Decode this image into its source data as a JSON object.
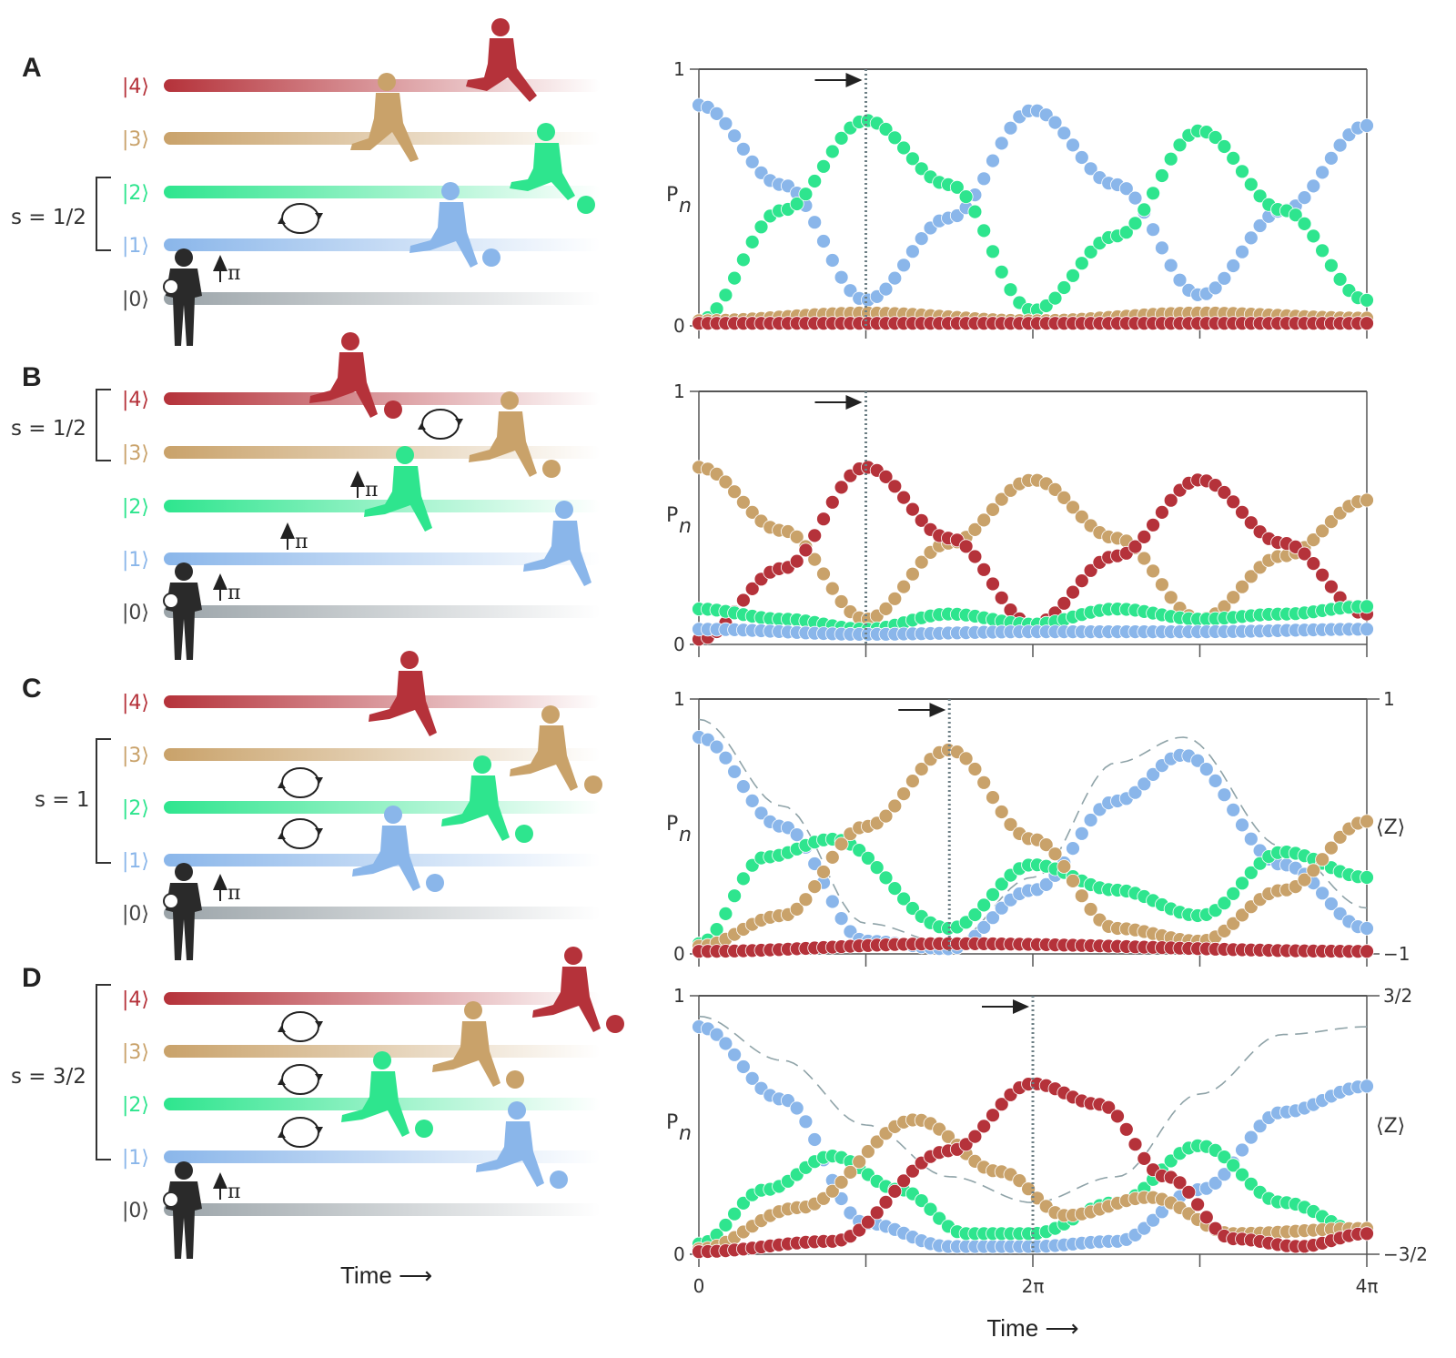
{
  "panel_A": {
    "letter": "A",
    "kets": [
      "|4⟩",
      "|3⟩",
      "|2⟩",
      "|1⟩",
      "|0⟩"
    ],
    "spin": "s = 1/2",
    "pulse": "π"
  },
  "panel_B": {
    "letter": "B",
    "kets": [
      "|4⟩",
      "|3⟩",
      "|2⟩",
      "|1⟩",
      "|0⟩"
    ],
    "spin": "s = 1/2",
    "pulse": "π"
  },
  "panel_C": {
    "letter": "C",
    "kets": [
      "|4⟩",
      "|3⟩",
      "|2⟩",
      "|1⟩",
      "|0⟩"
    ],
    "spin": "s = 1",
    "pulse": "π"
  },
  "panel_D": {
    "letter": "D",
    "kets": [
      "|4⟩",
      "|3⟩",
      "|2⟩",
      "|1⟩",
      "|0⟩"
    ],
    "spin": "s = 3/2",
    "pulse": "π"
  },
  "left_time_label": "Time ⟶",
  "colors": {
    "level_4": "#b5323a",
    "level_3": "#c9a26a",
    "level_2": "#2ee58e",
    "level_1": "#8ab6ea",
    "level_0": "#9aa3a8",
    "figure": "#2a2a2a",
    "z_line": "#8fa3a8"
  },
  "chart_data": [
    {
      "type": "scatter",
      "panel": "A",
      "ylabel": "P",
      "ylabel_sub": "n",
      "yticks": [
        "0",
        "1"
      ],
      "ylim": [
        0,
        1
      ],
      "xlim": [
        0,
        4
      ],
      "x_unit": "π",
      "marker": 1,
      "series": [
        {
          "color": "#8ab6ea",
          "points": [
            [
              0,
              0.86
            ],
            [
              0.5,
              0.55
            ],
            [
              1,
              0.1
            ],
            [
              1.5,
              0.42
            ],
            [
              2,
              0.84
            ],
            [
              2.5,
              0.55
            ],
            [
              3,
              0.12
            ],
            [
              3.5,
              0.45
            ],
            [
              4,
              0.78
            ]
          ]
        },
        {
          "color": "#2ee58e",
          "points": [
            [
              0,
              0.02
            ],
            [
              0.5,
              0.45
            ],
            [
              1,
              0.8
            ],
            [
              1.5,
              0.55
            ],
            [
              2,
              0.06
            ],
            [
              2.5,
              0.35
            ],
            [
              3,
              0.76
            ],
            [
              3.5,
              0.45
            ],
            [
              4,
              0.1
            ]
          ]
        },
        {
          "color": "#c9a26a",
          "points": [
            [
              0,
              0.02
            ],
            [
              1,
              0.05
            ],
            [
              2,
              0.02
            ],
            [
              3,
              0.05
            ],
            [
              4,
              0.03
            ]
          ]
        },
        {
          "color": "#b5323a",
          "points": [
            [
              0,
              0.01
            ],
            [
              2,
              0.01
            ],
            [
              4,
              0.01
            ]
          ]
        }
      ]
    },
    {
      "type": "scatter",
      "panel": "B",
      "ylabel": "P",
      "ylabel_sub": "n",
      "yticks": [
        "0",
        "1"
      ],
      "ylim": [
        0,
        1
      ],
      "xlim": [
        0,
        4
      ],
      "x_unit": "π",
      "marker": 1,
      "series": [
        {
          "color": "#c9a26a",
          "points": [
            [
              0,
              0.7
            ],
            [
              0.5,
              0.45
            ],
            [
              1,
              0.1
            ],
            [
              1.5,
              0.4
            ],
            [
              2,
              0.65
            ],
            [
              2.5,
              0.42
            ],
            [
              3,
              0.1
            ],
            [
              3.5,
              0.35
            ],
            [
              4,
              0.57
            ]
          ]
        },
        {
          "color": "#b5323a",
          "points": [
            [
              0,
              0.02
            ],
            [
              0.5,
              0.3
            ],
            [
              1,
              0.7
            ],
            [
              1.5,
              0.42
            ],
            [
              2,
              0.08
            ],
            [
              2.5,
              0.35
            ],
            [
              3,
              0.65
            ],
            [
              3.5,
              0.4
            ],
            [
              4,
              0.12
            ]
          ]
        },
        {
          "color": "#2ee58e",
          "points": [
            [
              0,
              0.14
            ],
            [
              0.5,
              0.1
            ],
            [
              1,
              0.06
            ],
            [
              1.5,
              0.12
            ],
            [
              2,
              0.08
            ],
            [
              2.5,
              0.14
            ],
            [
              3,
              0.1
            ],
            [
              3.5,
              0.12
            ],
            [
              4,
              0.15
            ]
          ]
        },
        {
          "color": "#8ab6ea",
          "points": [
            [
              0,
              0.06
            ],
            [
              1,
              0.04
            ],
            [
              2,
              0.05
            ],
            [
              3,
              0.05
            ],
            [
              4,
              0.06
            ]
          ]
        }
      ]
    },
    {
      "type": "scatter",
      "panel": "C",
      "ylabel": "P",
      "ylabel_sub": "n",
      "yticks": [
        "0",
        "1"
      ],
      "ylim": [
        0,
        1
      ],
      "xlim": [
        0,
        4
      ],
      "x_unit": "π",
      "marker": 1.5,
      "right_axis": {
        "label": "⟨Z⟩",
        "ticks": [
          "1",
          "−1"
        ]
      },
      "series": [
        {
          "color": "#8ab6ea",
          "points": [
            [
              0,
              0.85
            ],
            [
              0.5,
              0.5
            ],
            [
              1,
              0.05
            ],
            [
              1.5,
              0.02
            ],
            [
              2,
              0.25
            ],
            [
              2.5,
              0.6
            ],
            [
              2.9,
              0.78
            ],
            [
              3.5,
              0.35
            ],
            [
              4,
              0.1
            ]
          ]
        },
        {
          "color": "#2ee58e",
          "points": [
            [
              0,
              0.04
            ],
            [
              0.4,
              0.38
            ],
            [
              0.8,
              0.45
            ],
            [
              1.5,
              0.1
            ],
            [
              2,
              0.35
            ],
            [
              2.5,
              0.25
            ],
            [
              3,
              0.15
            ],
            [
              3.5,
              0.4
            ],
            [
              4,
              0.3
            ]
          ]
        },
        {
          "color": "#c9a26a",
          "points": [
            [
              0,
              0.03
            ],
            [
              0.5,
              0.15
            ],
            [
              1,
              0.5
            ],
            [
              1.5,
              0.8
            ],
            [
              2,
              0.45
            ],
            [
              2.5,
              0.1
            ],
            [
              3,
              0.05
            ],
            [
              3.5,
              0.25
            ],
            [
              4,
              0.52
            ]
          ]
        },
        {
          "color": "#b5323a",
          "points": [
            [
              0,
              0.01
            ],
            [
              1.5,
              0.04
            ],
            [
              4,
              0.01
            ]
          ]
        }
      ],
      "z_line": [
        [
          0,
          0.92
        ],
        [
          0.5,
          0.58
        ],
        [
          1,
          0.12
        ],
        [
          1.5,
          0.04
        ],
        [
          2,
          0.3
        ],
        [
          2.5,
          0.75
        ],
        [
          2.9,
          0.85
        ],
        [
          3.5,
          0.42
        ],
        [
          4,
          0.18
        ]
      ]
    },
    {
      "type": "scatter",
      "panel": "D",
      "ylabel": "P",
      "ylabel_sub": "n",
      "yticks": [
        "0",
        "1"
      ],
      "ylim": [
        0,
        1
      ],
      "xlim": [
        0,
        4
      ],
      "x_unit": "π",
      "xticks": [
        "0",
        "2π",
        "4π"
      ],
      "xlabel": "Time ⟶",
      "marker": 2,
      "right_axis": {
        "label": "⟨Z⟩",
        "ticks": [
          "3/2",
          "−3/2"
        ]
      },
      "series": [
        {
          "color": "#8ab6ea",
          "points": [
            [
              0,
              0.88
            ],
            [
              0.5,
              0.6
            ],
            [
              1,
              0.12
            ],
            [
              1.5,
              0.03
            ],
            [
              2,
              0.03
            ],
            [
              2.5,
              0.05
            ],
            [
              3,
              0.25
            ],
            [
              3.5,
              0.55
            ],
            [
              4,
              0.65
            ]
          ]
        },
        {
          "color": "#2ee58e",
          "points": [
            [
              0,
              0.04
            ],
            [
              0.4,
              0.25
            ],
            [
              0.8,
              0.38
            ],
            [
              1.2,
              0.25
            ],
            [
              1.6,
              0.08
            ],
            [
              2,
              0.08
            ],
            [
              2.5,
              0.2
            ],
            [
              3,
              0.42
            ],
            [
              3.5,
              0.2
            ],
            [
              4,
              0.08
            ]
          ]
        },
        {
          "color": "#c9a26a",
          "points": [
            [
              0,
              0.02
            ],
            [
              0.6,
              0.18
            ],
            [
              1.3,
              0.52
            ],
            [
              1.8,
              0.32
            ],
            [
              2.2,
              0.15
            ],
            [
              2.7,
              0.22
            ],
            [
              3.2,
              0.08
            ],
            [
              4,
              0.1
            ]
          ]
        },
        {
          "color": "#b5323a",
          "points": [
            [
              0,
              0.01
            ],
            [
              0.8,
              0.05
            ],
            [
              1.5,
              0.4
            ],
            [
              2,
              0.66
            ],
            [
              2.4,
              0.58
            ],
            [
              2.8,
              0.3
            ],
            [
              3.2,
              0.06
            ],
            [
              3.6,
              0.03
            ],
            [
              4,
              0.08
            ]
          ]
        }
      ],
      "z_line": [
        [
          0,
          0.92
        ],
        [
          0.5,
          0.75
        ],
        [
          1,
          0.5
        ],
        [
          1.5,
          0.3
        ],
        [
          2,
          0.2
        ],
        [
          2.5,
          0.3
        ],
        [
          3,
          0.62
        ],
        [
          3.5,
          0.85
        ],
        [
          4,
          0.88
        ]
      ]
    }
  ]
}
